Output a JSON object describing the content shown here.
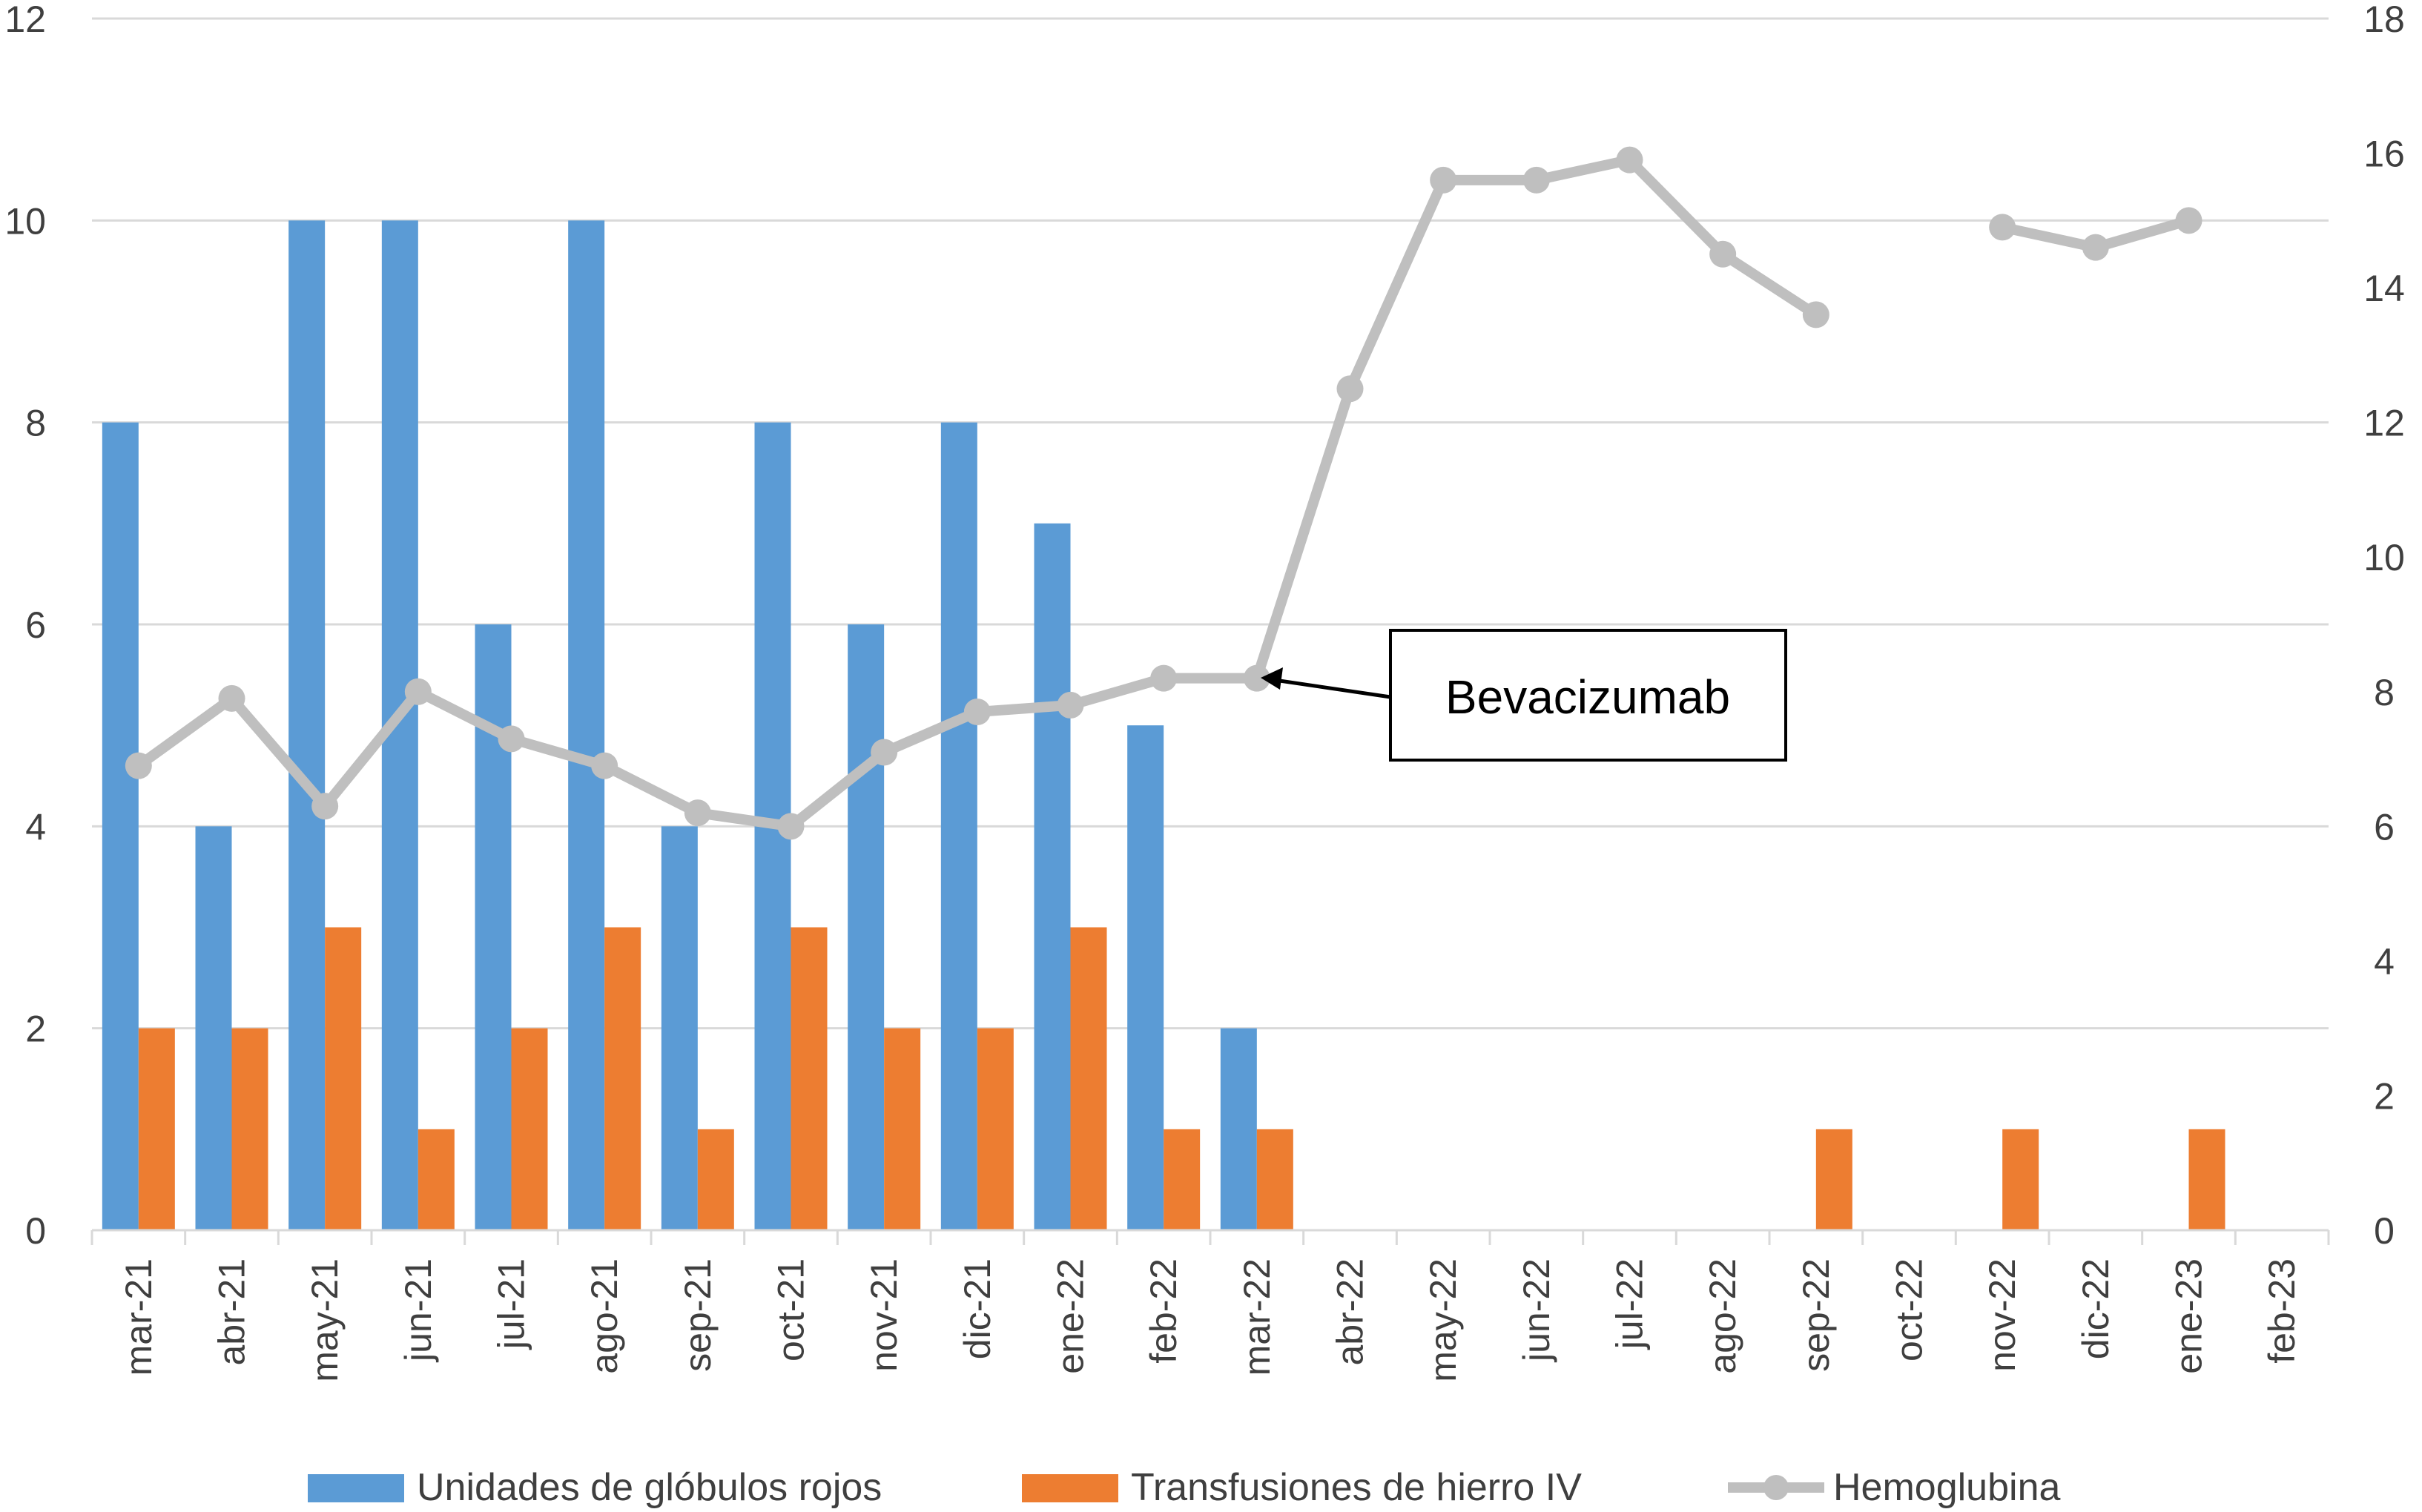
{
  "chart_data": {
    "type": "bar",
    "categories": [
      "mar-21",
      "abr-21",
      "may-21",
      "jun-21",
      "jul-21",
      "ago-21",
      "sep-21",
      "oct-21",
      "nov-21",
      "dic-21",
      "ene-22",
      "feb-22",
      "mar-22",
      "abr-22",
      "may-22",
      "jun-22",
      "jul-22",
      "ago-22",
      "sep-22",
      "oct-22",
      "nov-22",
      "dic-22",
      "ene-23",
      "feb-23"
    ],
    "series": [
      {
        "name": "Unidades de glóbulos rojos",
        "type": "bar",
        "axis": "left",
        "color": "#5b9bd5",
        "values": [
          8,
          4,
          10,
          10,
          6,
          10,
          4,
          8,
          6,
          8,
          7,
          5,
          2,
          null,
          null,
          null,
          null,
          null,
          null,
          null,
          null,
          null,
          null,
          null
        ]
      },
      {
        "name": "Transfusiones de hierro IV",
        "type": "bar",
        "axis": "left",
        "color": "#ed7d31",
        "values": [
          2,
          2,
          3,
          1,
          2,
          3,
          1,
          3,
          2,
          2,
          3,
          1,
          1,
          null,
          null,
          null,
          null,
          null,
          1,
          null,
          1,
          null,
          1,
          null
        ]
      },
      {
        "name": "Hemoglubina",
        "type": "line",
        "axis": "right",
        "color": "#bfbfbf",
        "values": [
          6.9,
          7.9,
          6.3,
          8.0,
          7.3,
          6.9,
          6.2,
          6.0,
          7.1,
          7.7,
          7.8,
          8.2,
          8.2,
          12.5,
          15.6,
          15.6,
          15.9,
          14.5,
          13.6,
          null,
          14.9,
          14.6,
          15.0,
          null
        ]
      }
    ],
    "left_axis": {
      "min": 0,
      "max": 12,
      "ticks": [
        0,
        2,
        4,
        6,
        8,
        10,
        12
      ]
    },
    "right_axis": {
      "min": 0,
      "max": 18,
      "ticks": [
        0,
        2,
        4,
        6,
        8,
        10,
        12,
        14,
        16,
        18
      ]
    },
    "grid": true,
    "legend_position": "bottom",
    "annotation": {
      "text": "Bevacizumab",
      "target_category": "mar-22",
      "series": "Hemoglubina"
    }
  }
}
